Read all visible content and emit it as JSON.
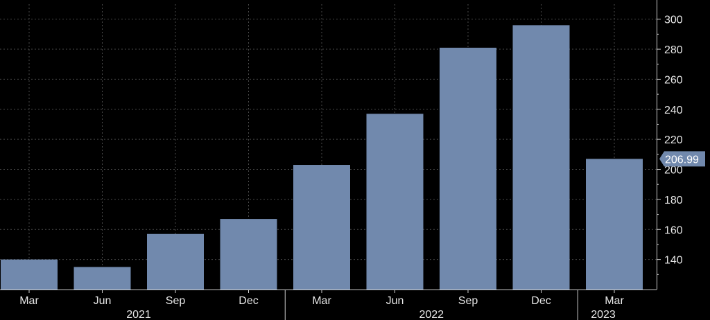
{
  "chart_data": {
    "type": "bar",
    "title": "",
    "xlabel": "",
    "ylabel": "",
    "categories": [
      "Mar",
      "Jun",
      "Sep",
      "Dec",
      "Mar",
      "Jun",
      "Sep",
      "Dec",
      "Mar"
    ],
    "year_labels": [
      {
        "label": "2021",
        "start_index": 0,
        "end_index": 3
      },
      {
        "label": "2022",
        "start_index": 4,
        "end_index": 7
      },
      {
        "label": "2023",
        "start_index": 8,
        "end_index": 8
      }
    ],
    "values": [
      140,
      135,
      157,
      167,
      203,
      237,
      281,
      296,
      206.99
    ],
    "ylim": [
      120,
      310
    ],
    "yticks": [
      140,
      160,
      180,
      200,
      220,
      240,
      260,
      280,
      300
    ],
    "y_axis_side": "right",
    "grid": true,
    "last_value_label": "206.99",
    "colors": {
      "background": "#000000",
      "bar": "#7189ad",
      "grid": "#4a4a4a",
      "text": "#e6e6e6",
      "label_box": "#7189ad"
    }
  }
}
